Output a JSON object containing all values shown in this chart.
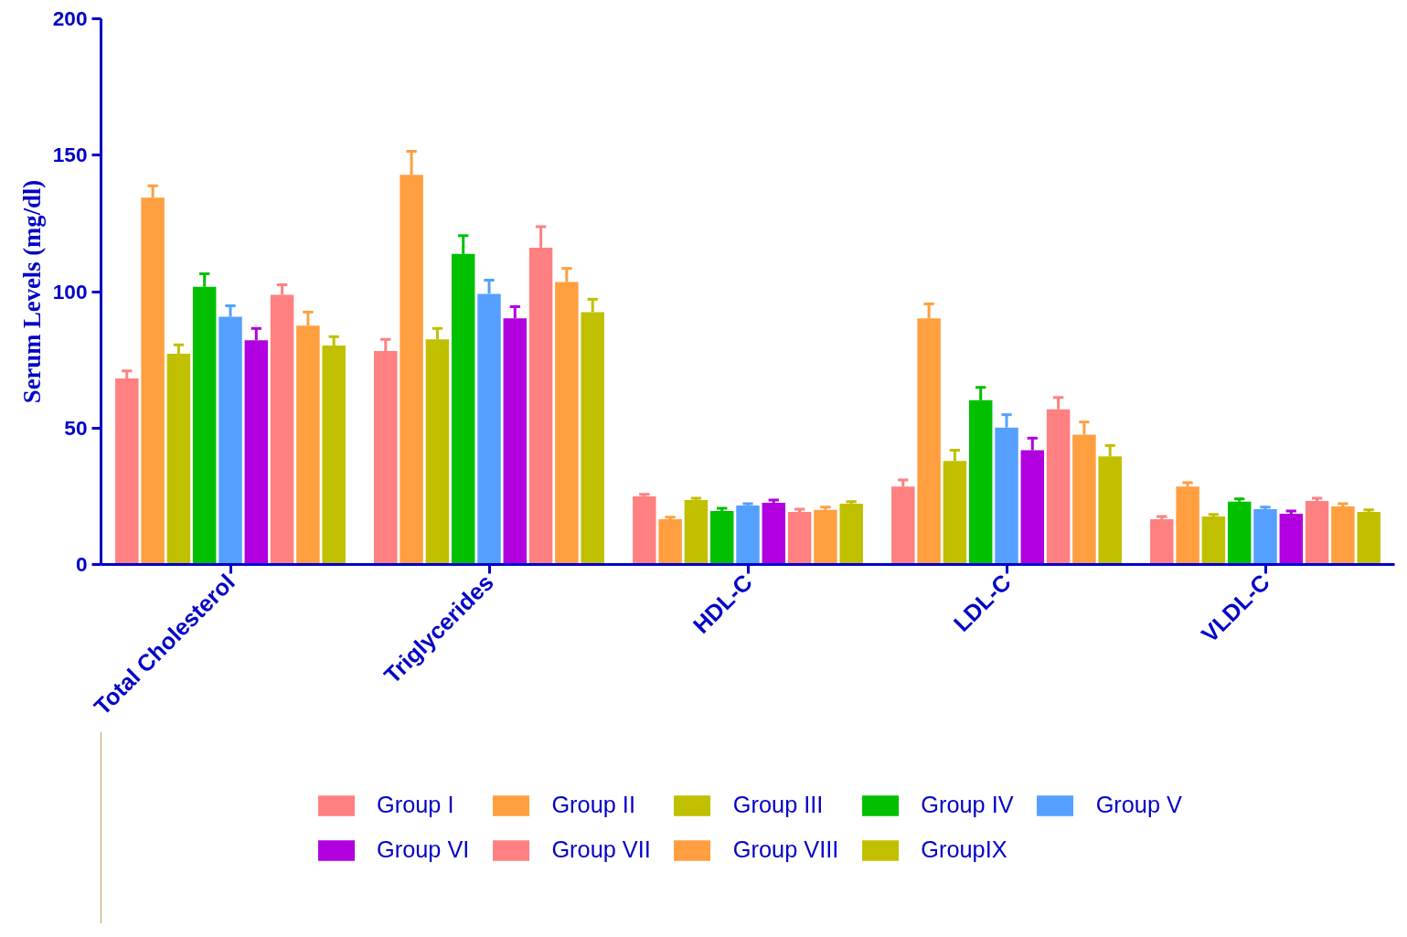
{
  "chart_data": {
    "type": "bar",
    "ylabel": "Serum Levels (mg/dl)",
    "categories": [
      "Total Cholesterol",
      "Triglycerides",
      "HDL-C",
      "LDL-C",
      "VLDL-C"
    ],
    "series": [
      {
        "name": "Group I",
        "color": "#ff8080",
        "values": [
          68.2,
          78.2,
          25,
          28.6,
          16.6
        ],
        "errors": [
          2.7,
          4.3,
          0.7,
          2.4,
          1
        ]
      },
      {
        "name": "Group II",
        "color": "#ff9f40",
        "values": [
          134.4,
          142.8,
          16.6,
          90.2,
          28.6
        ],
        "errors": [
          4.4,
          8.6,
          0.7,
          5.3,
          1.4
        ]
      },
      {
        "name": "Group III",
        "color": "#c0c000",
        "values": [
          77.2,
          82.5,
          23.6,
          37.9,
          17.6
        ],
        "errors": [
          3.3,
          4,
          0.7,
          4,
          0.7
        ]
      },
      {
        "name": "Group IV",
        "color": "#00c000",
        "values": [
          101.8,
          113.8,
          19.6,
          60.2,
          23
        ],
        "errors": [
          4.7,
          6.7,
          1,
          4.7,
          1
        ]
      },
      {
        "name": "Group V",
        "color": "#55a0ff",
        "values": [
          90.8,
          99.2,
          21.6,
          50.2,
          20.3
        ],
        "errors": [
          4,
          5,
          0.7,
          4.7,
          0.7
        ]
      },
      {
        "name": "Group VI",
        "color": "#b000e0",
        "values": [
          82.2,
          90.2,
          22.6,
          41.9,
          18.6
        ],
        "errors": [
          4.3,
          4.3,
          1,
          4.4,
          1
        ]
      },
      {
        "name": "Group VII",
        "color": "#ff8080",
        "values": [
          98.8,
          116.1,
          19.3,
          56.9,
          23.3
        ],
        "errors": [
          3.7,
          7.7,
          1,
          4.3,
          1
        ]
      },
      {
        "name": "Group VIII",
        "color": "#ff9f40",
        "values": [
          87.5,
          103.5,
          20,
          47.6,
          21.3
        ],
        "errors": [
          5,
          5,
          1,
          4.6,
          1
        ]
      },
      {
        "name": "GroupIX",
        "color": "#c0c000",
        "values": [
          80.2,
          92.5,
          22.3,
          39.6,
          19.3
        ],
        "errors": [
          3.3,
          4.7,
          0.7,
          4,
          0.7
        ]
      }
    ],
    "ylim": [
      0,
      200
    ],
    "yticks": [
      0,
      50,
      100,
      150,
      200
    ],
    "grid": false,
    "legend": "bottom"
  }
}
